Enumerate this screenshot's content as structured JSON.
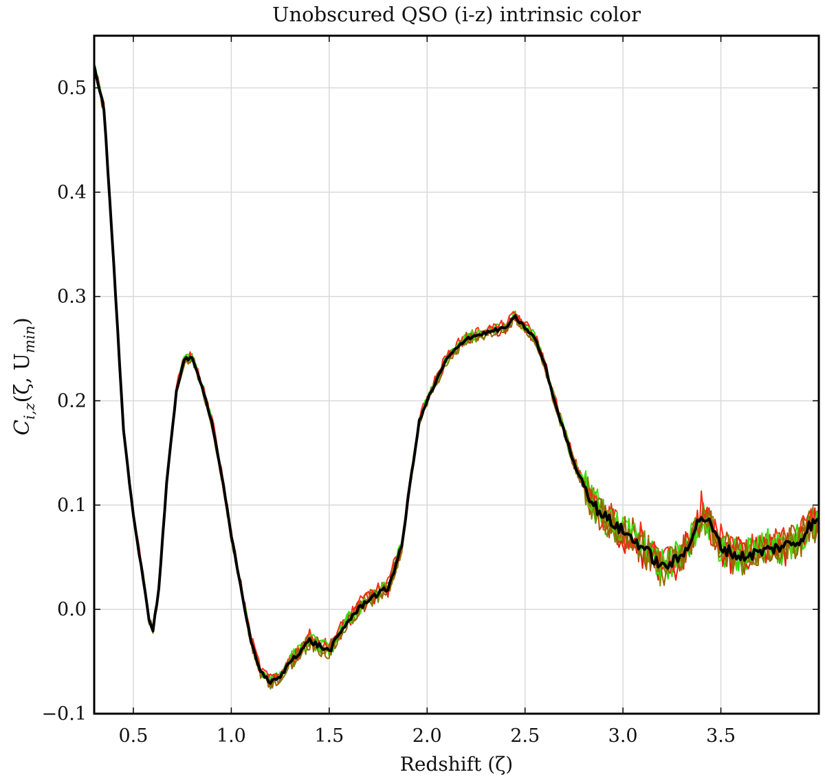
{
  "chart_data": {
    "type": "line",
    "title": "Unobscured QSO (i-z) intrinsic color",
    "xlabel": "Redshift (ζ)",
    "ylabel": "C_{i,z}(ζ, U_{min})",
    "ylabel_display": {
      "symbol": "C",
      "subscript": "i,z",
      "args": "(ζ, U",
      "args_subscript": "min",
      "close": ")"
    },
    "xlim": [
      0.3,
      4.0
    ],
    "ylim": [
      -0.1,
      0.55
    ],
    "xticks": [
      0.5,
      1.0,
      1.5,
      2.0,
      2.5,
      3.0,
      3.5
    ],
    "xtick_labels": [
      "0.5",
      "1.0",
      "1.5",
      "2.0",
      "2.5",
      "3.0",
      "3.5"
    ],
    "yticks": [
      -0.1,
      0.0,
      0.1,
      0.2,
      0.3,
      0.4,
      0.5
    ],
    "ytick_labels": [
      "−0.1",
      "0.0",
      "0.1",
      "0.2",
      "0.3",
      "0.4",
      "0.5"
    ],
    "grid": true,
    "legend": "none",
    "series_colors": [
      "#22e000",
      "#e61e0a",
      "#b84a00",
      "#7a8a00",
      "#ff2a1a",
      "#3fe012",
      "#9a6500"
    ],
    "mean_color": "#000000",
    "mean_curve": {
      "x": [
        0.3,
        0.35,
        0.4,
        0.45,
        0.5,
        0.55,
        0.58,
        0.6,
        0.63,
        0.67,
        0.72,
        0.76,
        0.8,
        0.85,
        0.9,
        0.95,
        1.0,
        1.05,
        1.1,
        1.15,
        1.2,
        1.25,
        1.3,
        1.35,
        1.4,
        1.45,
        1.5,
        1.55,
        1.6,
        1.7,
        1.8,
        1.87,
        1.92,
        1.96,
        2.0,
        2.05,
        2.1,
        2.2,
        2.3,
        2.4,
        2.45,
        2.5,
        2.55,
        2.6,
        2.65,
        2.7,
        2.75,
        2.8,
        2.85,
        2.9,
        3.0,
        3.1,
        3.2,
        3.3,
        3.35,
        3.4,
        3.45,
        3.5,
        3.6,
        3.7,
        3.8,
        3.9,
        3.95,
        4.0
      ],
      "y": [
        0.52,
        0.48,
        0.33,
        0.17,
        0.09,
        0.03,
        -0.01,
        -0.02,
        0.02,
        0.12,
        0.21,
        0.24,
        0.24,
        0.215,
        0.18,
        0.13,
        0.07,
        0.02,
        -0.03,
        -0.06,
        -0.07,
        -0.065,
        -0.05,
        -0.04,
        -0.03,
        -0.035,
        -0.04,
        -0.025,
        -0.01,
        0.01,
        0.02,
        0.06,
        0.13,
        0.18,
        0.2,
        0.22,
        0.24,
        0.26,
        0.265,
        0.27,
        0.28,
        0.27,
        0.26,
        0.235,
        0.2,
        0.17,
        0.14,
        0.12,
        0.1,
        0.09,
        0.075,
        0.06,
        0.04,
        0.05,
        0.07,
        0.09,
        0.08,
        0.06,
        0.05,
        0.055,
        0.06,
        0.065,
        0.08,
        0.085
      ]
    }
  }
}
